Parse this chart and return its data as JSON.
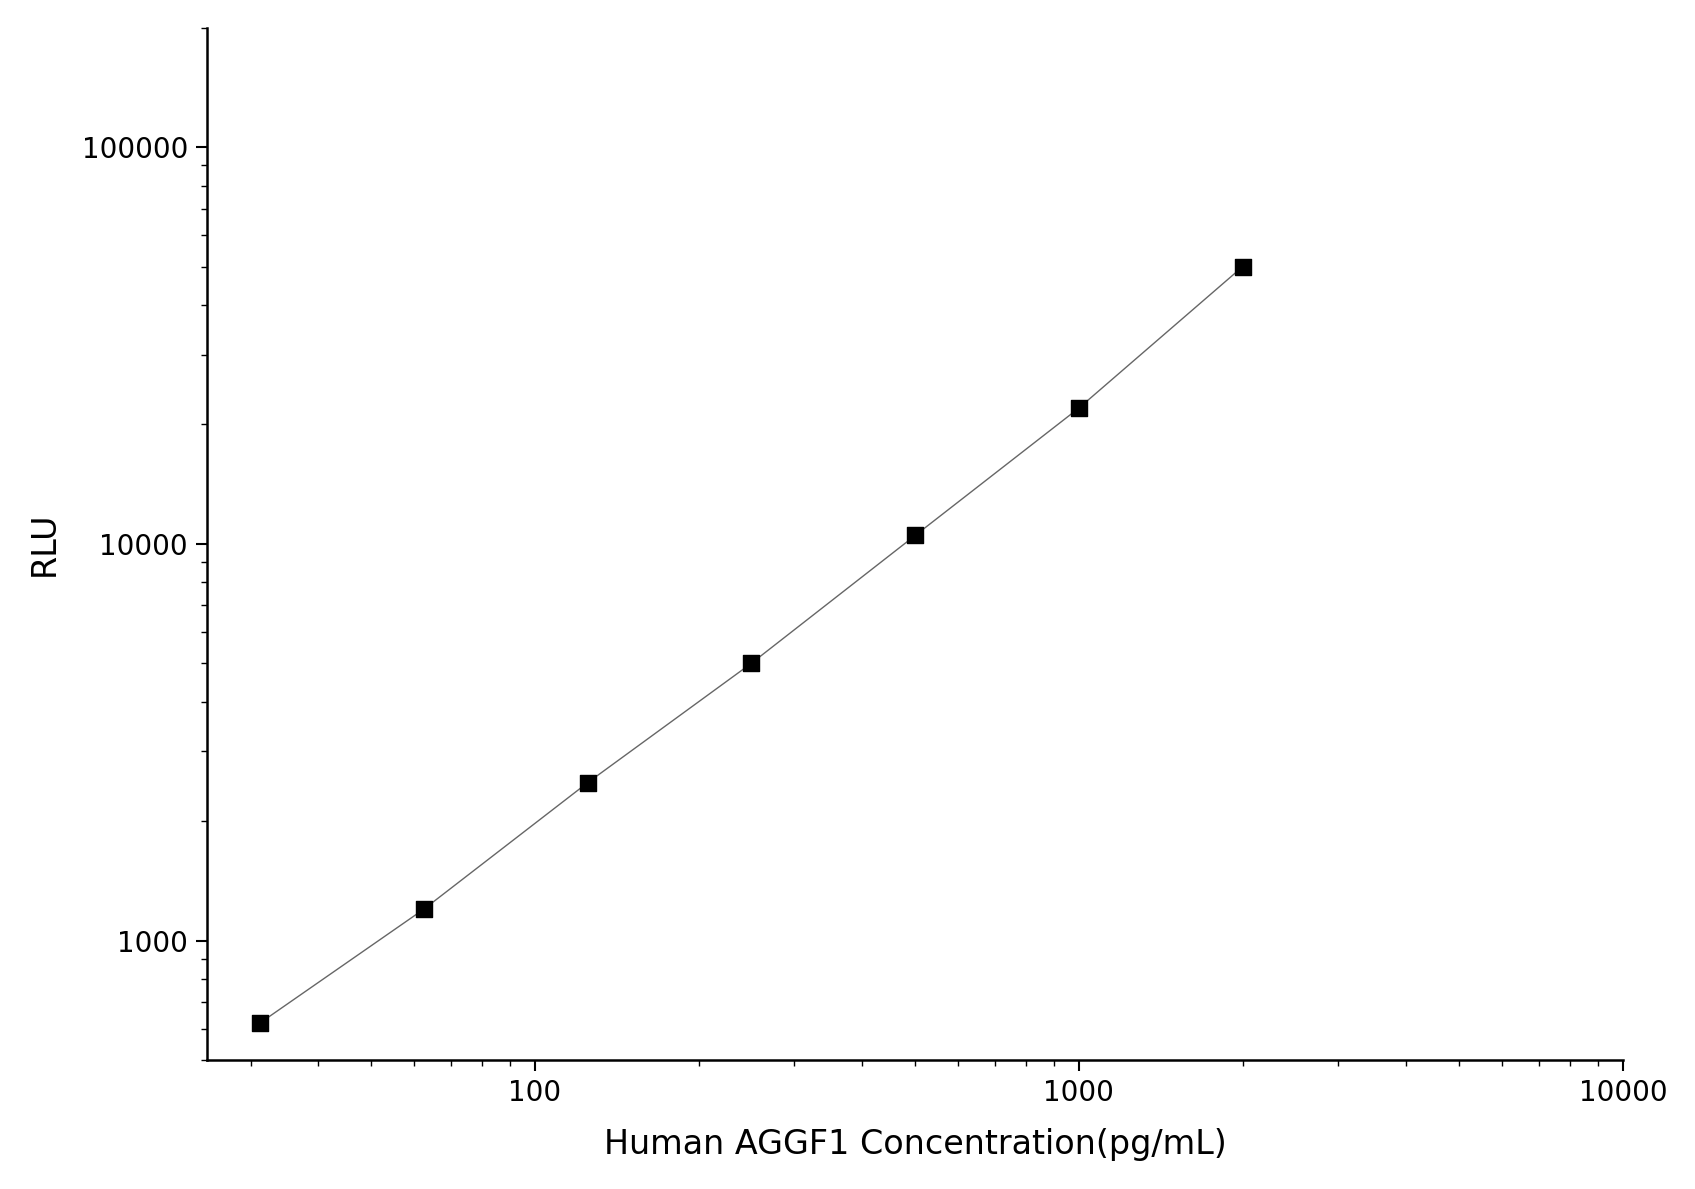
{
  "x_values": [
    31.25,
    62.5,
    125,
    250,
    500,
    1000,
    2000
  ],
  "y_values": [
    620,
    1200,
    2500,
    5000,
    10500,
    22000,
    50000
  ],
  "xlabel": "Human AGGF1 Concentration(pg/mL)",
  "ylabel": "RLU",
  "xlim_log": [
    25,
    10000
  ],
  "ylim_log": [
    500,
    200000
  ],
  "x_ticks_major": [
    100,
    1000,
    10000
  ],
  "y_ticks_major": [
    1000,
    10000,
    100000
  ],
  "line_color": "#666666",
  "marker_color": "#000000",
  "background_color": "#ffffff",
  "marker_size": 11,
  "line_width": 1.0,
  "xlabel_fontsize": 24,
  "ylabel_fontsize": 24,
  "tick_fontsize": 20
}
